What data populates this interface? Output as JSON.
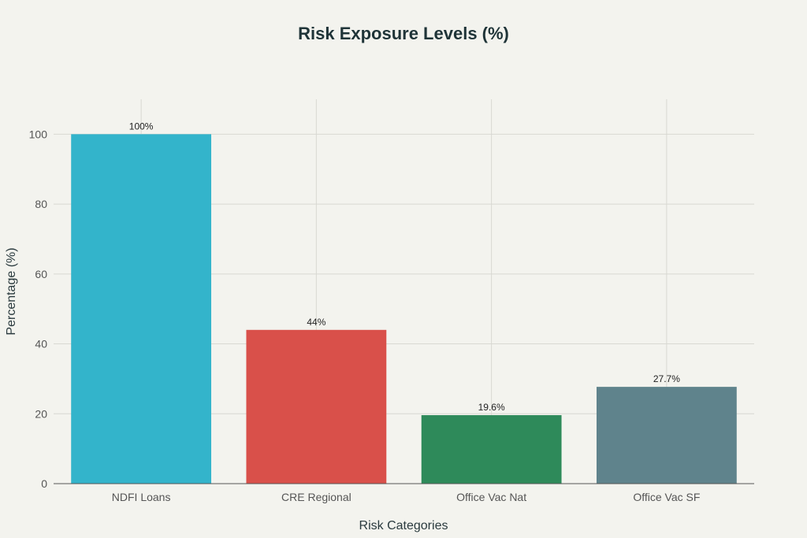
{
  "chart_data": {
    "type": "bar",
    "title": "Risk Exposure Levels (%)",
    "xlabel": "Risk Categories",
    "ylabel": "Percentage (%)",
    "categories": [
      "NDFI Loans",
      "CRE Regional",
      "Office Vac Nat",
      "Office Vac SF"
    ],
    "values": [
      100,
      44,
      19.6,
      27.7
    ],
    "data_labels": [
      "100%",
      "44%",
      "19.6%",
      "27.7%"
    ],
    "colors": [
      "#33b4cb",
      "#d9504a",
      "#2e8a5a",
      "#5f838c"
    ],
    "ylim": [
      0,
      110
    ],
    "yticks": [
      0,
      20,
      40,
      60,
      80,
      100
    ],
    "grid": true,
    "legend": "none"
  }
}
